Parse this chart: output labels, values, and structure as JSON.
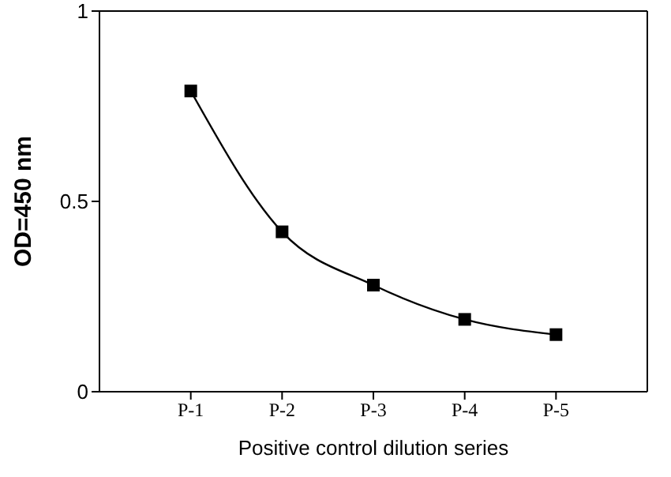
{
  "chart_data": {
    "type": "line",
    "xlabel": "Positive control dilution series",
    "ylabel": "OD=450 nm",
    "categories": [
      "P-1",
      "P-2",
      "P-3",
      "P-4",
      "P-5"
    ],
    "series": [
      {
        "color": "#000000",
        "values": [
          0.79,
          0.42,
          0.28,
          0.19,
          0.15
        ]
      }
    ],
    "ylim": [
      0,
      1
    ],
    "yticks": [
      0,
      0.5,
      1
    ],
    "marker": "square",
    "line_style": "solid"
  }
}
